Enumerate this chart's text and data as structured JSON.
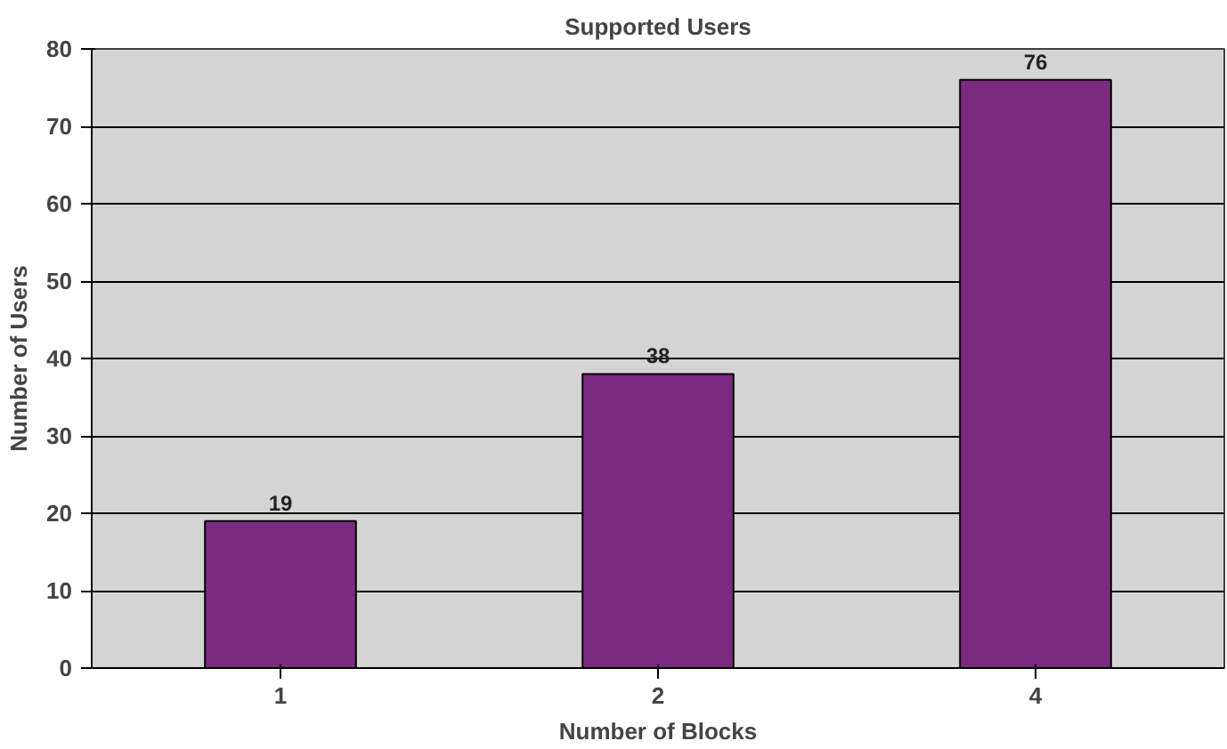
{
  "chart_data": {
    "type": "bar",
    "title": "Supported Users",
    "xlabel": "Number of Blocks",
    "ylabel": "Number of Users",
    "categories": [
      "1",
      "2",
      "4"
    ],
    "values": [
      19,
      38,
      76
    ],
    "color": "#7b2a82",
    "ylim": [
      0,
      80
    ],
    "yticks": [
      0,
      10,
      20,
      30,
      40,
      50,
      60,
      70,
      80
    ],
    "grid": "y",
    "data_labels": true
  }
}
